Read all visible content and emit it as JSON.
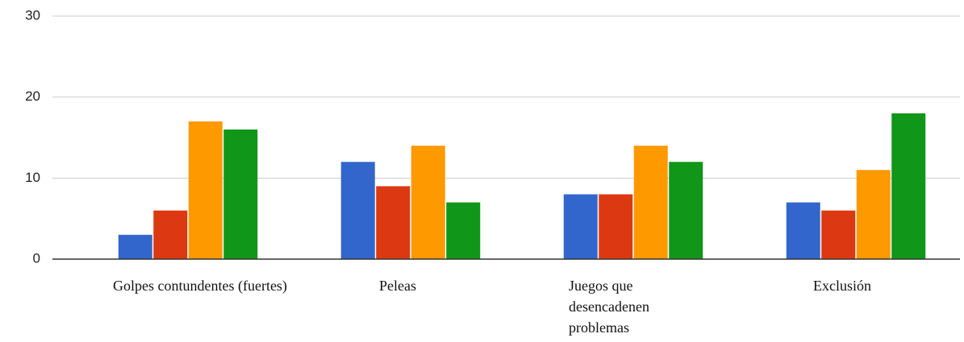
{
  "chart_data": {
    "type": "bar",
    "categories": [
      "Golpes contundentes (fuertes)",
      "Peleas",
      "Juegos que desencadenen problemas",
      "Exclusión"
    ],
    "series": [
      {
        "color": "#3366cc",
        "values": [
          3,
          12,
          8,
          7
        ]
      },
      {
        "color": "#dc3912",
        "values": [
          6,
          9,
          8,
          6
        ]
      },
      {
        "color": "#ff9900",
        "values": [
          17,
          14,
          14,
          11
        ]
      },
      {
        "color": "#109618",
        "values": [
          16,
          7,
          12,
          18
        ]
      }
    ],
    "ylim": [
      0,
      30
    ],
    "yticks": [
      0,
      10,
      20,
      30
    ],
    "grid": true
  }
}
